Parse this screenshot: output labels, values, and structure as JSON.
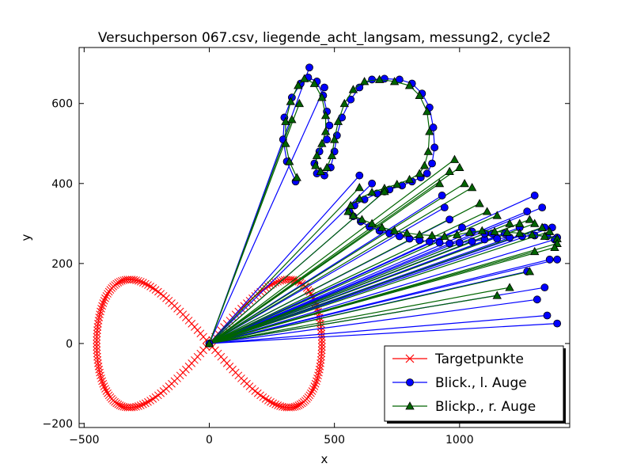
{
  "chart_data": {
    "type": "line",
    "title": "Versuchperson 067.csv, liegende_acht_langsam, messung2, cycle2",
    "xlabel": "x",
    "ylabel": "y",
    "xlim": [
      -520,
      1440
    ],
    "ylim": [
      -210,
      740
    ],
    "xticks": [
      -500,
      0,
      500,
      1000
    ],
    "yticks": [
      -200,
      0,
      200,
      400,
      600
    ],
    "tick_labels": {
      "x": [
        "−500",
        "0",
        "500",
        "1000"
      ],
      "y": [
        "−200",
        "0",
        "200",
        "400",
        "600"
      ]
    },
    "grid": false,
    "legend_position": "lower-right",
    "target": {
      "name": "Targetpunkte",
      "color": "#ff0000",
      "marker": "x",
      "shape": "figure-eight (lemniscate)",
      "center": [
        0,
        0
      ],
      "x_half_width": 450,
      "y_half_height": 160,
      "n_points": 240
    },
    "gaze_origin": [
      0,
      0
    ],
    "series": [
      {
        "name": "Blick., l. Auge",
        "color": "#0000ff",
        "marker": "circle",
        "path": [
          [
            345,
            405
          ],
          [
            310,
            455
          ],
          [
            295,
            510
          ],
          [
            300,
            565
          ],
          [
            330,
            615
          ],
          [
            365,
            650
          ],
          [
            395,
            665
          ],
          [
            430,
            655
          ],
          [
            455,
            620
          ],
          [
            470,
            580
          ],
          [
            480,
            545
          ],
          [
            470,
            510
          ],
          [
            440,
            480
          ],
          [
            420,
            450
          ],
          [
            430,
            425
          ],
          [
            460,
            420
          ],
          [
            485,
            440
          ],
          [
            500,
            480
          ],
          [
            510,
            520
          ],
          [
            530,
            565
          ],
          [
            565,
            610
          ],
          [
            600,
            640
          ],
          [
            650,
            660
          ],
          [
            700,
            662
          ],
          [
            760,
            660
          ],
          [
            810,
            650
          ],
          [
            850,
            625
          ],
          [
            880,
            590
          ],
          [
            895,
            540
          ],
          [
            900,
            490
          ],
          [
            890,
            450
          ],
          [
            870,
            425
          ],
          [
            845,
            415
          ],
          [
            810,
            405
          ],
          [
            770,
            395
          ],
          [
            720,
            385
          ],
          [
            670,
            375
          ],
          [
            620,
            360
          ],
          [
            580,
            345
          ],
          [
            560,
            330
          ],
          [
            575,
            318
          ],
          [
            605,
            305
          ],
          [
            640,
            292
          ],
          [
            680,
            282
          ],
          [
            720,
            275
          ],
          [
            760,
            268
          ],
          [
            800,
            262
          ],
          [
            840,
            258
          ],
          [
            880,
            255
          ],
          [
            920,
            252
          ],
          [
            960,
            250
          ],
          [
            1000,
            252
          ],
          [
            1050,
            255
          ],
          [
            1100,
            260
          ],
          [
            1150,
            262
          ],
          [
            1200,
            265
          ],
          [
            1250,
            268
          ],
          [
            1300,
            270
          ],
          [
            1350,
            268
          ],
          [
            1390,
            265
          ]
        ],
        "outliers": [
          [
            400,
            690
          ],
          [
            460,
            640
          ],
          [
            600,
            420
          ],
          [
            650,
            400
          ],
          [
            700,
            380
          ],
          [
            930,
            370
          ],
          [
            940,
            340
          ],
          [
            960,
            310
          ],
          [
            1010,
            290
          ],
          [
            1050,
            280
          ],
          [
            1100,
            275
          ],
          [
            1130,
            275
          ],
          [
            1180,
            275
          ],
          [
            1200,
            265
          ],
          [
            1240,
            290
          ],
          [
            1270,
            330
          ],
          [
            1300,
            370
          ],
          [
            1330,
            340
          ],
          [
            1340,
            290
          ],
          [
            1370,
            290
          ],
          [
            1380,
            260
          ],
          [
            1390,
            210
          ],
          [
            1360,
            210
          ],
          [
            1340,
            140
          ],
          [
            1310,
            110
          ],
          [
            1270,
            180
          ],
          [
            1350,
            70
          ],
          [
            1390,
            50
          ]
        ]
      },
      {
        "name": "Blickp., r. Auge",
        "color": "#006400",
        "marker": "triangle",
        "path": [
          [
            350,
            415
          ],
          [
            320,
            455
          ],
          [
            305,
            500
          ],
          [
            305,
            555
          ],
          [
            325,
            605
          ],
          [
            355,
            645
          ],
          [
            380,
            662
          ],
          [
            420,
            650
          ],
          [
            450,
            615
          ],
          [
            465,
            570
          ],
          [
            465,
            530
          ],
          [
            450,
            500
          ],
          [
            430,
            470
          ],
          [
            425,
            445
          ],
          [
            445,
            430
          ],
          [
            470,
            440
          ],
          [
            490,
            470
          ],
          [
            500,
            510
          ],
          [
            515,
            555
          ],
          [
            540,
            600
          ],
          [
            575,
            635
          ],
          [
            620,
            655
          ],
          [
            680,
            660
          ],
          [
            740,
            655
          ],
          [
            800,
            645
          ],
          [
            840,
            620
          ],
          [
            870,
            580
          ],
          [
            880,
            530
          ],
          [
            875,
            480
          ],
          [
            860,
            445
          ],
          [
            840,
            425
          ],
          [
            800,
            410
          ],
          [
            750,
            398
          ],
          [
            700,
            388
          ],
          [
            650,
            378
          ],
          [
            600,
            362
          ],
          [
            565,
            345
          ],
          [
            555,
            330
          ],
          [
            575,
            320
          ],
          [
            610,
            310
          ],
          [
            650,
            300
          ],
          [
            690,
            290
          ],
          [
            740,
            282
          ],
          [
            790,
            276
          ],
          [
            840,
            272
          ],
          [
            890,
            270
          ],
          [
            940,
            268
          ],
          [
            990,
            272
          ],
          [
            1040,
            278
          ],
          [
            1090,
            282
          ],
          [
            1140,
            280
          ],
          [
            1190,
            278
          ],
          [
            1240,
            276
          ],
          [
            1290,
            272
          ],
          [
            1340,
            268
          ],
          [
            1390,
            262
          ]
        ],
        "outliers": [
          [
            330,
            560
          ],
          [
            360,
            600
          ],
          [
            600,
            390
          ],
          [
            700,
            380
          ],
          [
            920,
            400
          ],
          [
            960,
            430
          ],
          [
            980,
            460
          ],
          [
            1000,
            440
          ],
          [
            1020,
            400
          ],
          [
            1050,
            390
          ],
          [
            1080,
            350
          ],
          [
            1110,
            330
          ],
          [
            1150,
            320
          ],
          [
            1200,
            300
          ],
          [
            1240,
            300
          ],
          [
            1280,
            310
          ],
          [
            1300,
            300
          ],
          [
            1330,
            290
          ],
          [
            1360,
            280
          ],
          [
            1390,
            250
          ],
          [
            1300,
            230
          ],
          [
            1280,
            180
          ],
          [
            1200,
            140
          ],
          [
            1150,
            120
          ],
          [
            1380,
            240
          ]
        ]
      }
    ]
  }
}
